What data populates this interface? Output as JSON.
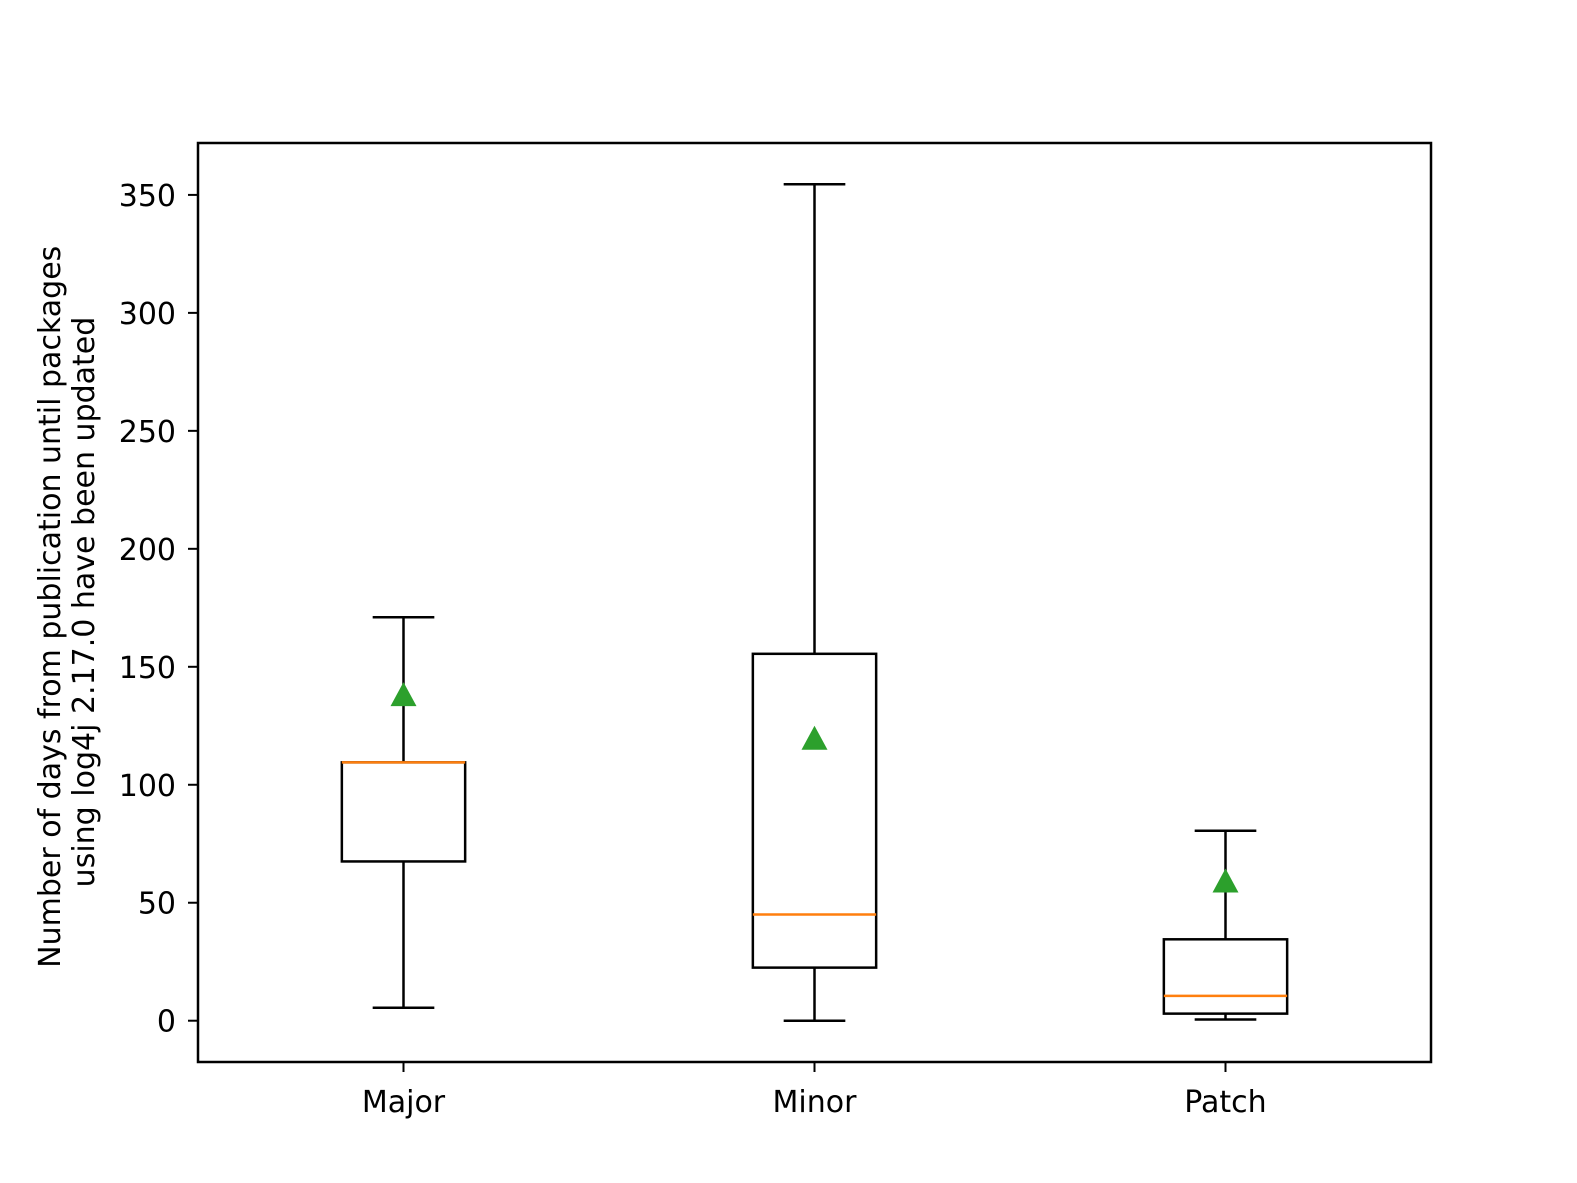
{
  "chart_data": {
    "type": "box",
    "categories": [
      "Major",
      "Minor",
      "Patch"
    ],
    "ylabel_lines": [
      "Number of days from publication until packages",
      "using log4j 2.17.0 have been updated"
    ],
    "ylim": [
      -17.5,
      372
    ],
    "yticks": [
      0,
      50,
      100,
      150,
      200,
      250,
      300,
      350
    ],
    "grid": false,
    "boxes": [
      {
        "category": "Major",
        "whisker_low": 5.5,
        "q1": 67.5,
        "median": 109.5,
        "q3": 109.5,
        "whisker_high": 171,
        "mean": 138
      },
      {
        "category": "Minor",
        "whisker_low": 0,
        "q1": 22.5,
        "median": 45,
        "q3": 155.5,
        "whisker_high": 354.5,
        "mean": 119.5
      },
      {
        "category": "Patch",
        "whisker_low": 0.5,
        "q1": 3,
        "median": 10.5,
        "q3": 34.5,
        "whisker_high": 80.5,
        "mean": 59
      }
    ],
    "colors": {
      "box": "#000000",
      "median": "#ff7f0e",
      "mean_marker": "#2ca02c"
    }
  }
}
